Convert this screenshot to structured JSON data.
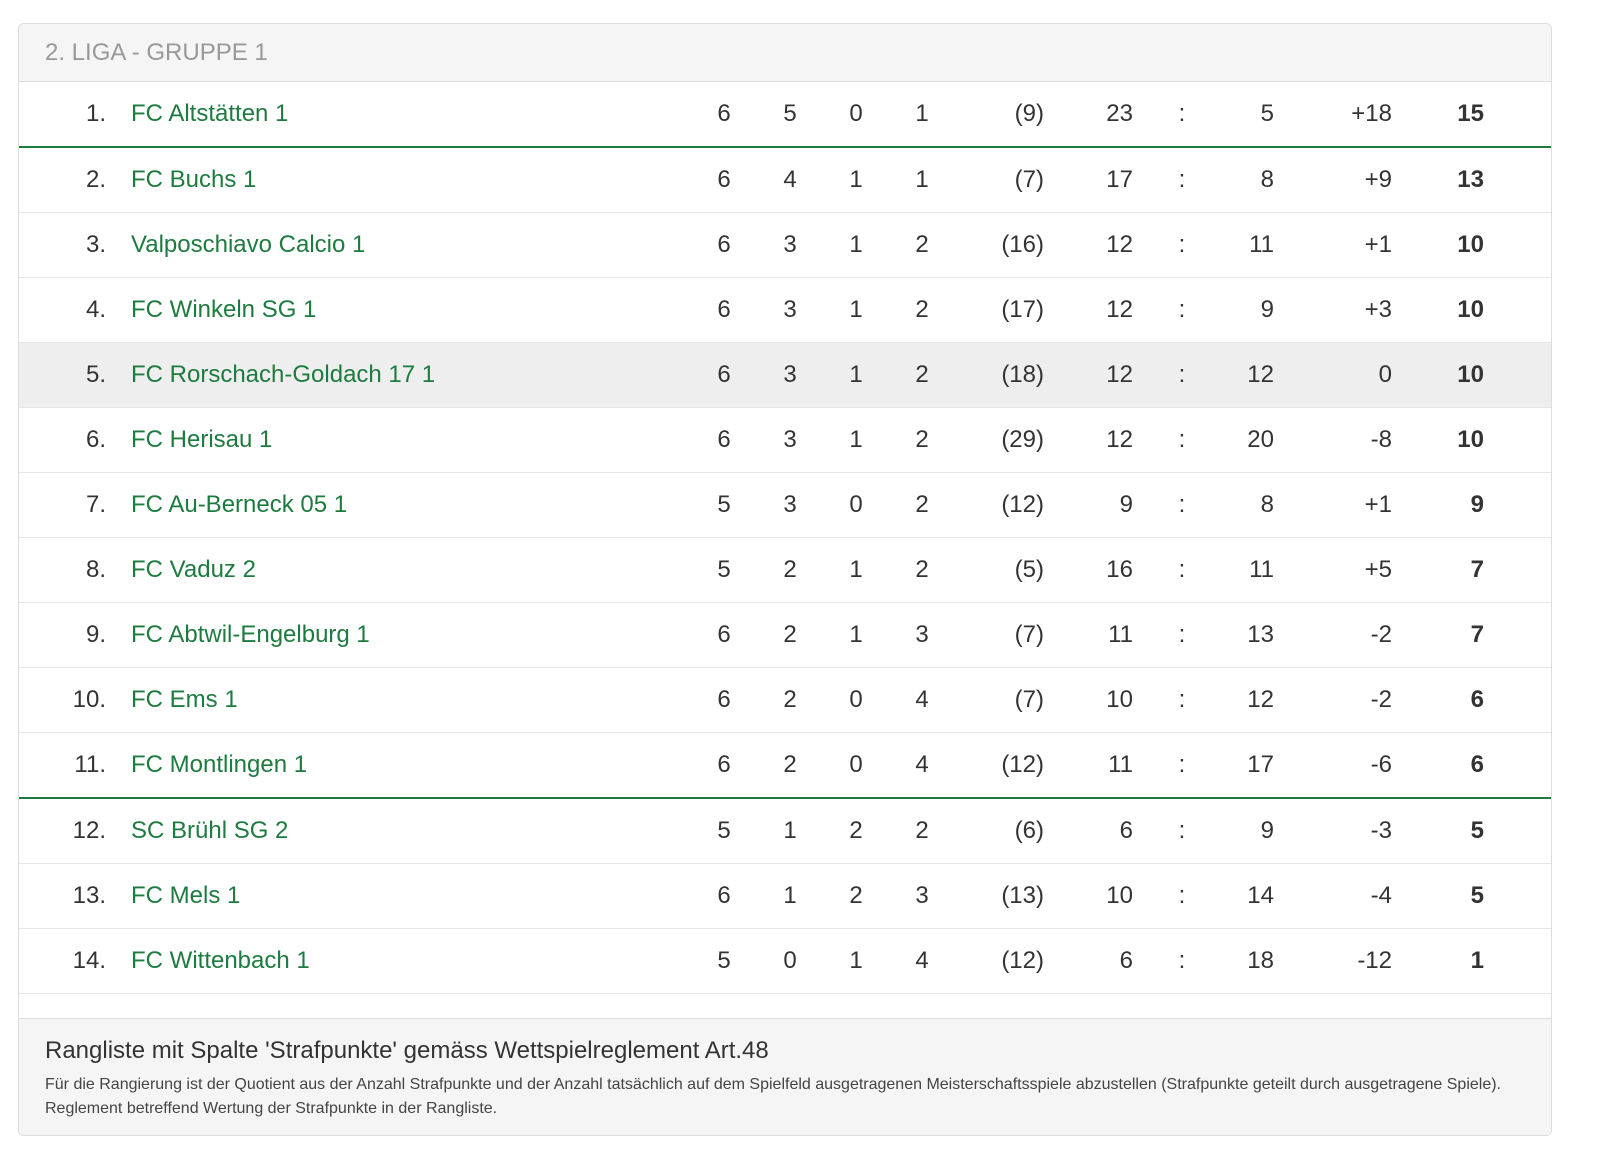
{
  "header": {
    "title": "2. LIGA - GRUPPE 1"
  },
  "colors": {
    "accent": "#1e7b3f",
    "highlight": "#eeeeee"
  },
  "rows": [
    {
      "rank": "1.",
      "team": "FC Altstätten 1",
      "gp": "6",
      "w": "5",
      "d": "0",
      "l": "1",
      "pen": "(9)",
      "gf": "23",
      "sep": ":",
      "ga": "5",
      "diff": "+18",
      "pts": "15"
    },
    {
      "rank": "2.",
      "team": "FC Buchs 1",
      "gp": "6",
      "w": "4",
      "d": "1",
      "l": "1",
      "pen": "(7)",
      "gf": "17",
      "sep": ":",
      "ga": "8",
      "diff": "+9",
      "pts": "13"
    },
    {
      "rank": "3.",
      "team": "Valposchiavo Calcio 1",
      "gp": "6",
      "w": "3",
      "d": "1",
      "l": "2",
      "pen": "(16)",
      "gf": "12",
      "sep": ":",
      "ga": "11",
      "diff": "+1",
      "pts": "10"
    },
    {
      "rank": "4.",
      "team": "FC Winkeln SG 1",
      "gp": "6",
      "w": "3",
      "d": "1",
      "l": "2",
      "pen": "(17)",
      "gf": "12",
      "sep": ":",
      "ga": "9",
      "diff": "+3",
      "pts": "10"
    },
    {
      "rank": "5.",
      "team": "FC Rorschach-Goldach 17 1",
      "gp": "6",
      "w": "3",
      "d": "1",
      "l": "2",
      "pen": "(18)",
      "gf": "12",
      "sep": ":",
      "ga": "12",
      "diff": "0",
      "pts": "10"
    },
    {
      "rank": "6.",
      "team": "FC Herisau 1",
      "gp": "6",
      "w": "3",
      "d": "1",
      "l": "2",
      "pen": "(29)",
      "gf": "12",
      "sep": ":",
      "ga": "20",
      "diff": "-8",
      "pts": "10"
    },
    {
      "rank": "7.",
      "team": "FC Au-Berneck 05 1",
      "gp": "5",
      "w": "3",
      "d": "0",
      "l": "2",
      "pen": "(12)",
      "gf": "9",
      "sep": ":",
      "ga": "8",
      "diff": "+1",
      "pts": "9"
    },
    {
      "rank": "8.",
      "team": "FC Vaduz 2",
      "gp": "5",
      "w": "2",
      "d": "1",
      "l": "2",
      "pen": "(5)",
      "gf": "16",
      "sep": ":",
      "ga": "11",
      "diff": "+5",
      "pts": "7"
    },
    {
      "rank": "9.",
      "team": "FC Abtwil-Engelburg 1",
      "gp": "6",
      "w": "2",
      "d": "1",
      "l": "3",
      "pen": "(7)",
      "gf": "11",
      "sep": ":",
      "ga": "13",
      "diff": "-2",
      "pts": "7"
    },
    {
      "rank": "10.",
      "team": "FC Ems 1",
      "gp": "6",
      "w": "2",
      "d": "0",
      "l": "4",
      "pen": "(7)",
      "gf": "10",
      "sep": ":",
      "ga": "12",
      "diff": "-2",
      "pts": "6"
    },
    {
      "rank": "11.",
      "team": "FC Montlingen 1",
      "gp": "6",
      "w": "2",
      "d": "0",
      "l": "4",
      "pen": "(12)",
      "gf": "11",
      "sep": ":",
      "ga": "17",
      "diff": "-6",
      "pts": "6"
    },
    {
      "rank": "12.",
      "team": "SC Brühl SG 2",
      "gp": "5",
      "w": "1",
      "d": "2",
      "l": "2",
      "pen": "(6)",
      "gf": "6",
      "sep": ":",
      "ga": "9",
      "diff": "-3",
      "pts": "5"
    },
    {
      "rank": "13.",
      "team": "FC Mels 1",
      "gp": "6",
      "w": "1",
      "d": "2",
      "l": "3",
      "pen": "(13)",
      "gf": "10",
      "sep": ":",
      "ga": "14",
      "diff": "-4",
      "pts": "5"
    },
    {
      "rank": "14.",
      "team": "FC Wittenbach 1",
      "gp": "5",
      "w": "0",
      "d": "1",
      "l": "4",
      "pen": "(12)",
      "gf": "6",
      "sep": ":",
      "ga": "18",
      "diff": "-12",
      "pts": "1"
    }
  ],
  "footer": {
    "title": "Rangliste mit Spalte 'Strafpunkte' gemäss Wettspielreglement Art.48",
    "description": "Für die Rangierung ist der Quotient aus der Anzahl Strafpunkte und der Anzahl tatsächlich auf dem Spielfeld ausgetragenen Meisterschaftsspiele abzustellen (Strafpunkte geteilt durch ausgetragene Spiele). Reglement betreffend Wertung der Strafpunkte in der Rangliste."
  }
}
